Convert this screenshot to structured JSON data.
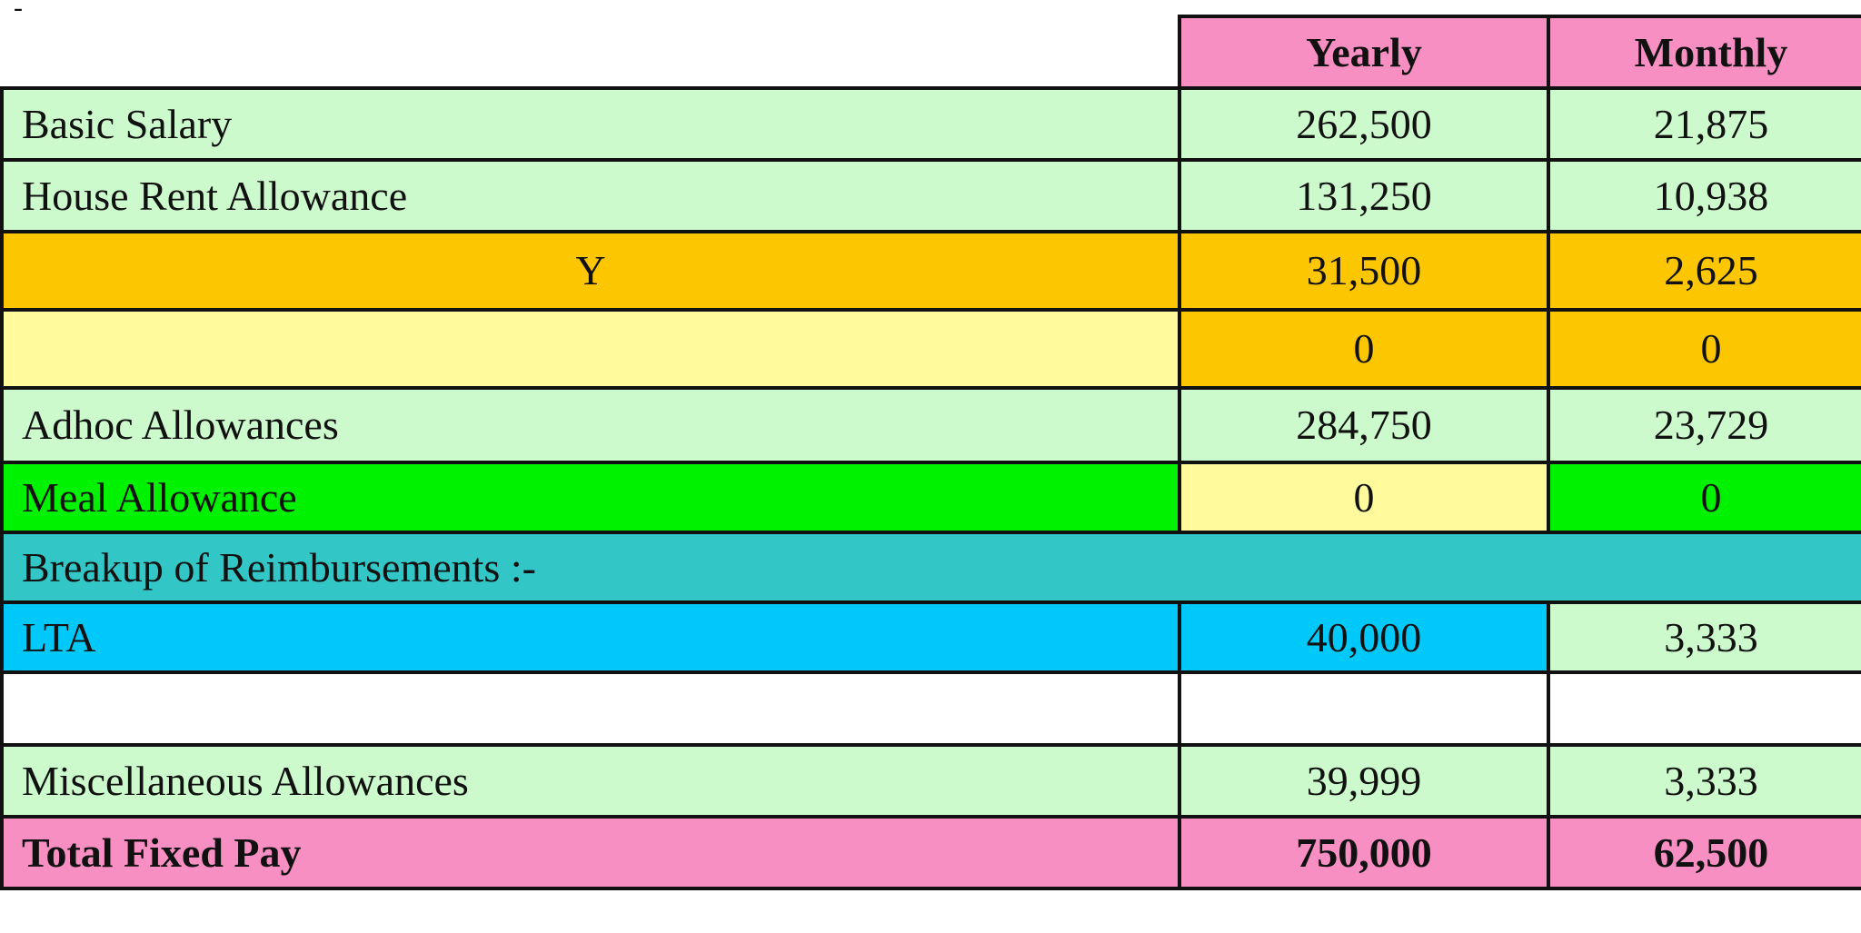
{
  "marker": "-",
  "header": {
    "yearly": "Yearly",
    "monthly": "Monthly"
  },
  "rows": [
    {
      "label": "Basic Salary",
      "yearly": "262,500",
      "monthly": "21,875"
    },
    {
      "label": "House Rent Allowance",
      "yearly": "131,250",
      "monthly": "10,938"
    },
    {
      "label": "Y",
      "yearly": "31,500",
      "monthly": "2,625"
    },
    {
      "label": "",
      "yearly": "0",
      "monthly": "0"
    },
    {
      "label": "Adhoc Allowances",
      "yearly": "284,750",
      "monthly": "23,729"
    },
    {
      "label": "Meal Allowance",
      "yearly": "0",
      "monthly": "0"
    },
    {
      "label": "Breakup of Reimbursements :-",
      "yearly": "",
      "monthly": ""
    },
    {
      "label": "LTA",
      "yearly": "40,000",
      "monthly": "3,333"
    },
    {
      "label": "",
      "yearly": "",
      "monthly": ""
    },
    {
      "label": "Miscellaneous Allowances",
      "yearly": "39,999",
      "monthly": "3,333"
    }
  ],
  "total": {
    "label": "Total Fixed Pay",
    "yearly": "750,000",
    "monthly": "62,500"
  },
  "colors": {
    "header_pink": "#f78fc3",
    "light_green": "#ccfacc",
    "orange": "#fcc600",
    "light_yellow": "#fffb9c",
    "bright_green": "#00f200",
    "teal": "#33c6c6",
    "sky_blue": "#00c8f8",
    "border": "#111111"
  }
}
